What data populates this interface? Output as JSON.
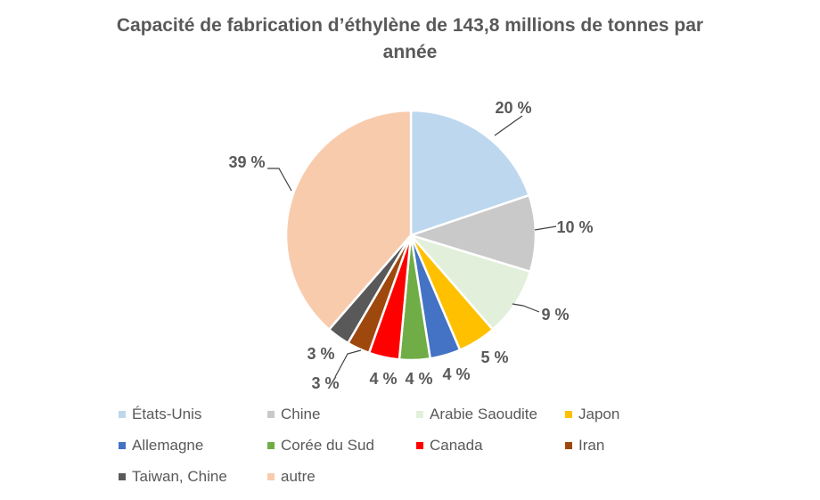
{
  "chart_data": {
    "type": "pie",
    "title": "Capacité de fabrication d’éthylène de 143,8 millions de tonnes par année",
    "title_lines": [
      "Capacité de fabrication d’éthylène de 143,8 millions de tonnes par",
      "année"
    ],
    "legend_position": "bottom",
    "slices": [
      {
        "label": "États-Unis",
        "value": 20,
        "data_label": "20 %",
        "color": "#bdd7ee"
      },
      {
        "label": "Chine",
        "value": 10,
        "data_label": "10 %",
        "color": "#c9c9c9"
      },
      {
        "label": "Arabie Saoudite",
        "value": 9,
        "data_label": "9 %",
        "color": "#e2efda"
      },
      {
        "label": "Japon",
        "value": 5,
        "data_label": "5 %",
        "color": "#ffc000"
      },
      {
        "label": "Allemagne",
        "value": 4,
        "data_label": "4 %",
        "color": "#4472c4"
      },
      {
        "label": "Corée du Sud",
        "value": 4,
        "data_label": "4 %",
        "color": "#70ad47"
      },
      {
        "label": "Canada",
        "value": 4,
        "data_label": "4 %",
        "color": "#ff0000"
      },
      {
        "label": "Iran",
        "value": 3,
        "data_label": "3 %",
        "color": "#9e480e"
      },
      {
        "label": "Taiwan, Chine",
        "value": 3,
        "data_label": "3 %",
        "color": "#595959"
      },
      {
        "label": "autre",
        "value": 39,
        "data_label": "39 %",
        "color": "#f8cbad"
      }
    ]
  }
}
